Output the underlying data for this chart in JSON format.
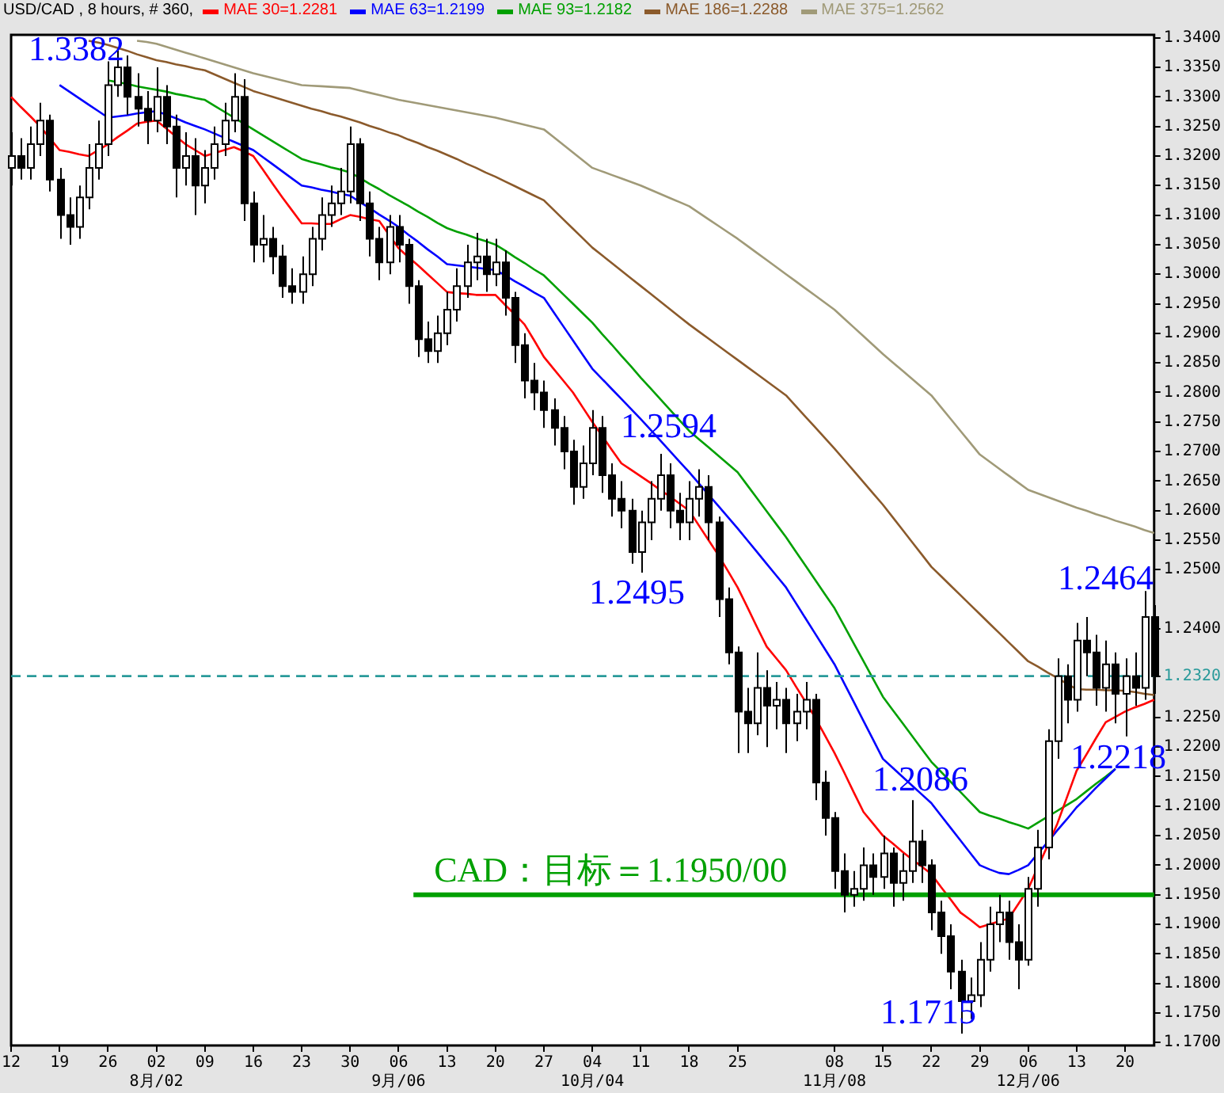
{
  "chart_data": {
    "type": "candlestick",
    "title": "USD/CAD , 8 hours, # 360,",
    "categories": [
      "12",
      null,
      null,
      null,
      null,
      "19",
      null,
      null,
      null,
      null,
      "26",
      null,
      null,
      null,
      null,
      "02\n8月/02",
      null,
      null,
      null,
      null,
      "09",
      null,
      null,
      null,
      null,
      "16",
      null,
      null,
      null,
      null,
      "23",
      null,
      null,
      null,
      null,
      "30",
      null,
      null,
      null,
      null,
      "06\n9月/06",
      null,
      null,
      null,
      null,
      "13",
      null,
      null,
      null,
      null,
      "20",
      null,
      null,
      null,
      null,
      "27",
      null,
      null,
      null,
      null,
      "04\n10月/04",
      null,
      null,
      null,
      null,
      "11",
      null,
      null,
      null,
      null,
      "18",
      null,
      null,
      null,
      null,
      "25",
      null,
      null,
      null,
      null,
      null,
      null,
      null,
      null,
      null,
      "08\n11月/08",
      null,
      null,
      null,
      null,
      "15",
      null,
      null,
      null,
      null,
      "22",
      null,
      null,
      null,
      null,
      "29",
      null,
      null,
      null,
      null,
      "06\n12月/06",
      null,
      null,
      null,
      null,
      "13",
      null,
      null,
      null,
      null,
      "20",
      null,
      null,
      null
    ],
    "ohlc": [
      [
        1.318,
        1.324,
        1.315,
        1.32
      ],
      [
        1.32,
        1.323,
        1.316,
        1.318
      ],
      [
        1.318,
        1.325,
        1.316,
        1.322
      ],
      [
        1.322,
        1.329,
        1.32,
        1.326
      ],
      [
        1.326,
        1.327,
        1.314,
        1.316
      ],
      [
        1.316,
        1.318,
        1.306,
        1.31
      ],
      [
        1.31,
        1.313,
        1.305,
        1.308
      ],
      [
        1.308,
        1.315,
        1.306,
        1.313
      ],
      [
        1.313,
        1.322,
        1.311,
        1.318
      ],
      [
        1.318,
        1.326,
        1.316,
        1.322
      ],
      [
        1.322,
        1.336,
        1.32,
        1.332
      ],
      [
        1.332,
        1.3382,
        1.33,
        1.335
      ],
      [
        1.335,
        1.337,
        1.327,
        1.33
      ],
      [
        1.33,
        1.334,
        1.325,
        1.328
      ],
      [
        1.328,
        1.331,
        1.322,
        1.326
      ],
      [
        1.326,
        1.335,
        1.324,
        1.33
      ],
      [
        1.33,
        1.332,
        1.322,
        1.325
      ],
      [
        1.325,
        1.327,
        1.313,
        1.318
      ],
      [
        1.318,
        1.324,
        1.315,
        1.32
      ],
      [
        1.32,
        1.323,
        1.31,
        1.315
      ],
      [
        1.315,
        1.321,
        1.312,
        1.318
      ],
      [
        1.318,
        1.325,
        1.316,
        1.322
      ],
      [
        1.322,
        1.329,
        1.32,
        1.326
      ],
      [
        1.326,
        1.334,
        1.324,
        1.33
      ],
      [
        1.33,
        1.333,
        1.309,
        1.312
      ],
      [
        1.312,
        1.314,
        1.302,
        1.305
      ],
      [
        1.305,
        1.31,
        1.302,
        1.306
      ],
      [
        1.306,
        1.308,
        1.3,
        1.303
      ],
      [
        1.303,
        1.305,
        1.296,
        1.298
      ],
      [
        1.298,
        1.301,
        1.295,
        1.297
      ],
      [
        1.297,
        1.303,
        1.295,
        1.3
      ],
      [
        1.3,
        1.308,
        1.298,
        1.306
      ],
      [
        1.306,
        1.313,
        1.304,
        1.31
      ],
      [
        1.31,
        1.315,
        1.308,
        1.312
      ],
      [
        1.312,
        1.318,
        1.31,
        1.314
      ],
      [
        1.314,
        1.325,
        1.312,
        1.322
      ],
      [
        1.322,
        1.323,
        1.309,
        1.312
      ],
      [
        1.312,
        1.314,
        1.303,
        1.306
      ],
      [
        1.306,
        1.308,
        1.299,
        1.302
      ],
      [
        1.302,
        1.31,
        1.3,
        1.308
      ],
      [
        1.308,
        1.31,
        1.302,
        1.305
      ],
      [
        1.305,
        1.306,
        1.295,
        1.298
      ],
      [
        1.298,
        1.299,
        1.286,
        1.289
      ],
      [
        1.289,
        1.292,
        1.285,
        1.287
      ],
      [
        1.287,
        1.293,
        1.285,
        1.29
      ],
      [
        1.29,
        1.297,
        1.288,
        1.294
      ],
      [
        1.294,
        1.301,
        1.292,
        1.298
      ],
      [
        1.298,
        1.305,
        1.296,
        1.302
      ],
      [
        1.302,
        1.307,
        1.299,
        1.303
      ],
      [
        1.303,
        1.306,
        1.297,
        1.3
      ],
      [
        1.3,
        1.306,
        1.298,
        1.302
      ],
      [
        1.302,
        1.304,
        1.293,
        1.296
      ],
      [
        1.296,
        1.297,
        1.285,
        1.288
      ],
      [
        1.288,
        1.29,
        1.279,
        1.282
      ],
      [
        1.282,
        1.285,
        1.277,
        1.28
      ],
      [
        1.28,
        1.282,
        1.274,
        1.277
      ],
      [
        1.277,
        1.279,
        1.271,
        1.274
      ],
      [
        1.274,
        1.276,
        1.267,
        1.27
      ],
      [
        1.27,
        1.272,
        1.261,
        1.264
      ],
      [
        1.264,
        1.271,
        1.262,
        1.268
      ],
      [
        1.268,
        1.277,
        1.266,
        1.274
      ],
      [
        1.274,
        1.276,
        1.263,
        1.266
      ],
      [
        1.266,
        1.268,
        1.259,
        1.262
      ],
      [
        1.262,
        1.265,
        1.257,
        1.26
      ],
      [
        1.26,
        1.262,
        1.251,
        1.253
      ],
      [
        1.253,
        1.26,
        1.2495,
        1.258
      ],
      [
        1.258,
        1.265,
        1.255,
        1.262
      ],
      [
        1.262,
        1.2696,
        1.26,
        1.266
      ],
      [
        1.266,
        1.268,
        1.257,
        1.26
      ],
      [
        1.26,
        1.263,
        1.255,
        1.258
      ],
      [
        1.258,
        1.265,
        1.255,
        1.262
      ],
      [
        1.262,
        1.267,
        1.259,
        1.264
      ],
      [
        1.264,
        1.266,
        1.255,
        1.258
      ],
      [
        1.258,
        1.259,
        1.242,
        1.245
      ],
      [
        1.245,
        1.247,
        1.234,
        1.236
      ],
      [
        1.236,
        1.237,
        1.219,
        1.226
      ],
      [
        1.226,
        1.23,
        1.219,
        1.224
      ],
      [
        1.224,
        1.236,
        1.222,
        1.23
      ],
      [
        1.23,
        1.233,
        1.22,
        1.227
      ],
      [
        1.227,
        1.231,
        1.223,
        1.228
      ],
      [
        1.228,
        1.23,
        1.219,
        1.224
      ],
      [
        1.224,
        1.229,
        1.221,
        1.226
      ],
      [
        1.226,
        1.231,
        1.223,
        1.228
      ],
      [
        1.228,
        1.229,
        1.211,
        1.214
      ],
      [
        1.214,
        1.216,
        1.205,
        1.208
      ],
      [
        1.208,
        1.209,
        1.196,
        1.199
      ],
      [
        1.199,
        1.202,
        1.192,
        1.195
      ],
      [
        1.195,
        1.199,
        1.193,
        1.196
      ],
      [
        1.196,
        1.203,
        1.194,
        1.2
      ],
      [
        1.2,
        1.202,
        1.195,
        1.198
      ],
      [
        1.198,
        1.205,
        1.196,
        1.202
      ],
      [
        1.202,
        1.203,
        1.193,
        1.197
      ],
      [
        1.197,
        1.202,
        1.194,
        1.199
      ],
      [
        1.199,
        1.211,
        1.197,
        1.204
      ],
      [
        1.204,
        1.206,
        1.197,
        1.2
      ],
      [
        1.2,
        1.201,
        1.189,
        1.192
      ],
      [
        1.192,
        1.194,
        1.185,
        1.188
      ],
      [
        1.188,
        1.19,
        1.179,
        1.182
      ],
      [
        1.182,
        1.184,
        1.1715,
        1.177
      ],
      [
        1.177,
        1.181,
        1.174,
        1.178
      ],
      [
        1.178,
        1.187,
        1.176,
        1.184
      ],
      [
        1.184,
        1.193,
        1.182,
        1.19
      ],
      [
        1.19,
        1.195,
        1.187,
        1.192
      ],
      [
        1.192,
        1.194,
        1.184,
        1.187
      ],
      [
        1.187,
        1.19,
        1.179,
        1.184
      ],
      [
        1.184,
        1.198,
        1.183,
        1.196
      ],
      [
        1.196,
        1.206,
        1.193,
        1.203
      ],
      [
        1.203,
        1.223,
        1.201,
        1.221
      ],
      [
        1.221,
        1.235,
        1.218,
        1.232
      ],
      [
        1.232,
        1.234,
        1.224,
        1.228
      ],
      [
        1.228,
        1.241,
        1.226,
        1.238
      ],
      [
        1.238,
        1.242,
        1.232,
        1.236
      ],
      [
        1.236,
        1.239,
        1.227,
        1.23
      ],
      [
        1.23,
        1.238,
        1.226,
        1.234
      ],
      [
        1.234,
        1.236,
        1.224,
        1.229
      ],
      [
        1.229,
        1.235,
        1.2218,
        1.232
      ],
      [
        1.232,
        1.236,
        1.227,
        1.23
      ],
      [
        1.23,
        1.2464,
        1.228,
        1.242
      ],
      [
        1.242,
        1.244,
        1.229,
        1.232
      ]
    ],
    "series": [
      {
        "type": "line",
        "name": "MAE 30=1.2281",
        "color": "#ff0000",
        "values": [
          1.33,
          1.3283,
          1.3267,
          1.325,
          1.323,
          1.321,
          1.3207,
          1.3203,
          1.32,
          1.321,
          1.322,
          1.3232,
          1.3243,
          1.3255,
          1.3258,
          1.326,
          1.3247,
          1.3233,
          1.322,
          1.321,
          1.32,
          1.3205,
          1.321,
          1.3215,
          1.3208,
          1.32,
          1.3177,
          1.3153,
          1.313,
          1.3108,
          1.3086,
          1.3086,
          1.3085,
          1.3085,
          1.3093,
          1.31,
          1.3097,
          1.3093,
          1.309,
          1.3067,
          1.3044,
          1.3029,
          1.3015,
          1.3,
          1.2985,
          1.297,
          1.2968,
          1.2967,
          1.2965,
          1.2965,
          1.2965,
          1.2948,
          1.2932,
          1.2915,
          1.2888,
          1.286,
          1.284,
          1.282,
          1.28,
          1.2775,
          1.275,
          1.2727,
          1.2703,
          1.268,
          1.2669,
          1.2658,
          1.2647,
          1.2635,
          1.2624,
          1.2612,
          1.26,
          1.2575,
          1.255,
          1.2525,
          1.2498,
          1.247,
          1.2437,
          1.2403,
          1.237,
          1.235,
          1.233,
          1.2303,
          1.2277,
          1.225,
          1.222,
          1.219,
          1.2157,
          1.2123,
          1.209,
          1.207,
          1.205,
          1.2037,
          1.2023,
          1.201,
          1.1998,
          1.1985,
          1.1963,
          1.1942,
          1.192,
          1.1908,
          1.1895,
          1.19,
          1.1905,
          1.191,
          1.1935,
          1.196,
          1.1997,
          1.2033,
          1.207,
          1.2115,
          1.216,
          1.2187,
          1.2215,
          1.2242,
          1.2251,
          1.226,
          1.2267,
          1.2273,
          1.228
        ]
      },
      {
        "type": "line",
        "name": "MAE 63=1.2199",
        "color": "#0000ff",
        "values": [
          null,
          null,
          null,
          null,
          null,
          1.332,
          1.3309,
          1.3298,
          1.3287,
          1.3276,
          1.3265,
          1.3267,
          1.3269,
          1.3272,
          1.3274,
          1.3276,
          1.327,
          1.3264,
          1.3257,
          1.3251,
          1.3245,
          1.3238,
          1.3231,
          1.3224,
          1.3217,
          1.321,
          1.3198,
          1.3186,
          1.3174,
          1.3162,
          1.315,
          1.3147,
          1.3143,
          1.314,
          1.3136,
          1.3133,
          1.3122,
          1.3112,
          1.3101,
          1.3091,
          1.308,
          1.3067,
          1.3055,
          1.3042,
          1.303,
          1.3017,
          1.3015,
          1.3013,
          1.3011,
          1.3009,
          1.3007,
          1.2998,
          1.2988,
          1.2979,
          1.2969,
          1.296,
          1.2936,
          1.2912,
          1.2888,
          1.2864,
          1.284,
          1.2823,
          1.2806,
          1.2789,
          1.2772,
          1.2755,
          1.2737,
          1.2719,
          1.2701,
          1.2683,
          1.2665,
          1.2646,
          1.2627,
          1.2608,
          1.2589,
          1.257,
          1.255,
          1.253,
          1.251,
          1.249,
          1.247,
          1.2444,
          1.2418,
          1.2392,
          1.2366,
          1.234,
          1.2308,
          1.2276,
          1.2244,
          1.2212,
          1.218,
          1.2165,
          1.215,
          1.2135,
          1.212,
          1.2105,
          1.2084,
          1.2063,
          1.2042,
          1.2021,
          1.2,
          1.1993,
          1.1987,
          1.1985,
          1.1992,
          1.2,
          1.202,
          1.2039,
          1.2059,
          1.2078,
          1.2098,
          1.2114,
          1.2131,
          1.2147,
          1.2163,
          null,
          null,
          null,
          null
        ]
      },
      {
        "type": "line",
        "name": "MAE 93=1.2182",
        "color": "#00a000",
        "values": [
          null,
          null,
          null,
          null,
          null,
          null,
          null,
          null,
          null,
          null,
          1.3328,
          1.3325,
          1.3322,
          1.3318,
          1.3315,
          1.3312,
          1.3309,
          1.3305,
          1.3302,
          1.3298,
          1.3295,
          1.3285,
          1.3275,
          1.3265,
          1.3255,
          1.3245,
          1.3235,
          1.3225,
          1.3215,
          1.3205,
          1.3195,
          1.319,
          1.3186,
          1.3181,
          1.3177,
          1.3172,
          1.3163,
          1.3153,
          1.3144,
          1.3134,
          1.3125,
          1.3116,
          1.3106,
          1.3097,
          1.3087,
          1.3078,
          1.3072,
          1.3067,
          1.3061,
          1.3056,
          1.305,
          1.304,
          1.3029,
          1.3019,
          1.3008,
          1.2998,
          1.2982,
          1.2966,
          1.295,
          1.2934,
          1.2918,
          1.2899,
          1.2881,
          1.2862,
          1.2844,
          1.2825,
          1.2807,
          1.2789,
          1.2771,
          1.2753,
          1.2735,
          1.2721,
          1.2707,
          1.2693,
          1.2679,
          1.2665,
          1.2643,
          1.2621,
          1.2599,
          1.2577,
          1.2555,
          1.2531,
          1.2507,
          1.2483,
          1.2459,
          1.2435,
          1.2405,
          1.2375,
          1.2345,
          1.2315,
          1.2285,
          1.2263,
          1.2241,
          1.2219,
          1.2197,
          1.2175,
          1.2158,
          1.2141,
          1.2124,
          1.2107,
          1.209,
          1.2084,
          1.2079,
          1.2073,
          1.2068,
          1.2062,
          1.2072,
          1.2082,
          1.2092,
          1.2102,
          1.2112,
          1.2125,
          1.2138,
          1.215,
          1.2163,
          null,
          null,
          null,
          null
        ]
      },
      {
        "type": "line",
        "name": "MAE 186=1.2288",
        "color": "#8b5a2b",
        "values": [
          null,
          null,
          null,
          null,
          null,
          null,
          null,
          null,
          1.3395,
          1.3392,
          1.3388,
          1.3383,
          1.3378,
          1.3372,
          1.3367,
          1.3362,
          1.3359,
          1.3355,
          1.3352,
          1.3348,
          1.3345,
          1.3338,
          1.3331,
          1.3324,
          1.3317,
          1.331,
          1.3305,
          1.33,
          1.3295,
          1.329,
          1.3285,
          1.328,
          1.3276,
          1.3271,
          1.3267,
          1.3262,
          1.3257,
          1.3251,
          1.3246,
          1.324,
          1.3235,
          1.3228,
          1.3222,
          1.3215,
          1.3209,
          1.3202,
          1.3195,
          1.3187,
          1.318,
          1.3172,
          1.3165,
          1.3157,
          1.3149,
          1.3141,
          1.3133,
          1.3125,
          1.3109,
          1.3093,
          1.3077,
          1.3061,
          1.3045,
          1.3032,
          1.3019,
          1.3006,
          1.2993,
          1.298,
          1.2967,
          1.2954,
          1.2941,
          1.2928,
          1.2915,
          1.2903,
          1.2891,
          1.2879,
          1.2867,
          1.2855,
          1.2843,
          1.2831,
          1.2819,
          1.2807,
          1.2795,
          1.2777,
          1.2759,
          1.2741,
          1.2723,
          1.2705,
          1.2686,
          1.2667,
          1.2648,
          1.2629,
          1.261,
          1.2589,
          1.2568,
          1.2547,
          1.2526,
          1.2505,
          1.2489,
          1.2473,
          1.2457,
          1.2441,
          1.2425,
          1.2409,
          1.2393,
          1.2377,
          1.2361,
          1.2345,
          1.2336,
          1.2326,
          1.2317,
          1.2307,
          1.2298,
          1.2297,
          1.2297,
          1.2296,
          1.2296,
          1.2295,
          1.2293,
          1.229,
          1.2288
        ]
      },
      {
        "type": "line",
        "name": "MAE 375=1.2562",
        "color": "#a09a78",
        "values": [
          null,
          null,
          null,
          null,
          null,
          null,
          null,
          null,
          null,
          null,
          null,
          null,
          null,
          1.3395,
          1.3393,
          1.339,
          1.3385,
          1.338,
          1.3375,
          1.337,
          1.3365,
          1.336,
          1.3355,
          1.335,
          1.3345,
          1.334,
          1.3336,
          1.3332,
          1.3328,
          1.3324,
          1.332,
          1.3319,
          1.3318,
          1.3317,
          1.3316,
          1.3315,
          1.3311,
          1.3307,
          1.3303,
          1.3299,
          1.3295,
          1.3292,
          1.3289,
          1.3286,
          1.3283,
          1.328,
          1.3277,
          1.3274,
          1.3271,
          1.3268,
          1.3265,
          1.3261,
          1.3257,
          1.3253,
          1.3249,
          1.3245,
          1.3232,
          1.3219,
          1.3206,
          1.3193,
          1.318,
          1.3174,
          1.3168,
          1.3162,
          1.3156,
          1.315,
          1.3143,
          1.3136,
          1.3129,
          1.3122,
          1.3115,
          1.3104,
          1.3093,
          1.3082,
          1.3071,
          1.306,
          1.3048,
          1.3036,
          1.3024,
          1.3012,
          1.3,
          1.2988,
          1.2976,
          1.2964,
          1.2952,
          1.294,
          1.2925,
          1.291,
          1.2895,
          1.288,
          1.2865,
          1.2851,
          1.2837,
          1.2823,
          1.2809,
          1.2795,
          1.2775,
          1.2755,
          1.2735,
          1.2715,
          1.2695,
          1.2683,
          1.2671,
          1.2659,
          1.2647,
          1.2635,
          1.2629,
          1.2623,
          1.2617,
          1.2611,
          1.2605,
          1.26,
          1.2594,
          1.2589,
          1.2583,
          1.2578,
          1.2573,
          1.2567,
          1.2562
        ]
      }
    ],
    "ylim": [
      1.1695,
      1.3405
    ],
    "yticks": [
      {
        "value": 1.17,
        "label": "1.1700"
      },
      {
        "value": 1.175,
        "label": "1.1750"
      },
      {
        "value": 1.18,
        "label": "1.1800"
      },
      {
        "value": 1.185,
        "label": "1.1850"
      },
      {
        "value": 1.19,
        "label": "1.1900"
      },
      {
        "value": 1.195,
        "label": "1.1950"
      },
      {
        "value": 1.2,
        "label": "1.2000"
      },
      {
        "value": 1.205,
        "label": "1.2050"
      },
      {
        "value": 1.21,
        "label": "1.2100"
      },
      {
        "value": 1.215,
        "label": "1.2150"
      },
      {
        "value": 1.22,
        "label": "1.2200"
      },
      {
        "value": 1.225,
        "label": "1.2250"
      },
      {
        "value": 1.232,
        "label": "1.2320"
      },
      {
        "value": 1.24,
        "label": "1.2400"
      },
      {
        "value": 1.25,
        "label": "1.2500"
      },
      {
        "value": 1.255,
        "label": "1.2550"
      },
      {
        "value": 1.26,
        "label": "1.2600"
      },
      {
        "value": 1.265,
        "label": "1.2650"
      },
      {
        "value": 1.27,
        "label": "1.2700"
      },
      {
        "value": 1.275,
        "label": "1.2750"
      },
      {
        "value": 1.28,
        "label": "1.2800"
      },
      {
        "value": 1.285,
        "label": "1.2850"
      },
      {
        "value": 1.29,
        "label": "1.2900"
      },
      {
        "value": 1.295,
        "label": "1.2950"
      },
      {
        "value": 1.3,
        "label": "1.3000"
      },
      {
        "value": 1.305,
        "label": "1.3050"
      },
      {
        "value": 1.31,
        "label": "1.3100"
      },
      {
        "value": 1.315,
        "label": "1.3150"
      },
      {
        "value": 1.32,
        "label": "1.3200"
      },
      {
        "value": 1.325,
        "label": "1.3250"
      },
      {
        "value": 1.33,
        "label": "1.3300"
      },
      {
        "value": 1.335,
        "label": "1.3350"
      },
      {
        "value": 1.34,
        "label": "1.3400"
      }
    ],
    "ref_lines": [
      {
        "axis": "y",
        "value": 1.232,
        "color": "#2a9a9a",
        "line_style": "dashed"
      },
      {
        "axis": "y",
        "value": 1.195,
        "color": "#00a000",
        "line_style": "solid",
        "label": "CAD：目标＝1.1950/00"
      }
    ],
    "annotations": [
      "1.3382",
      "1.2594",
      "1.2495",
      "1.2086",
      "1.1715",
      "1.2464",
      "1.2218"
    ],
    "legend": "top left",
    "marker": "none",
    "line_style": "solid"
  }
}
